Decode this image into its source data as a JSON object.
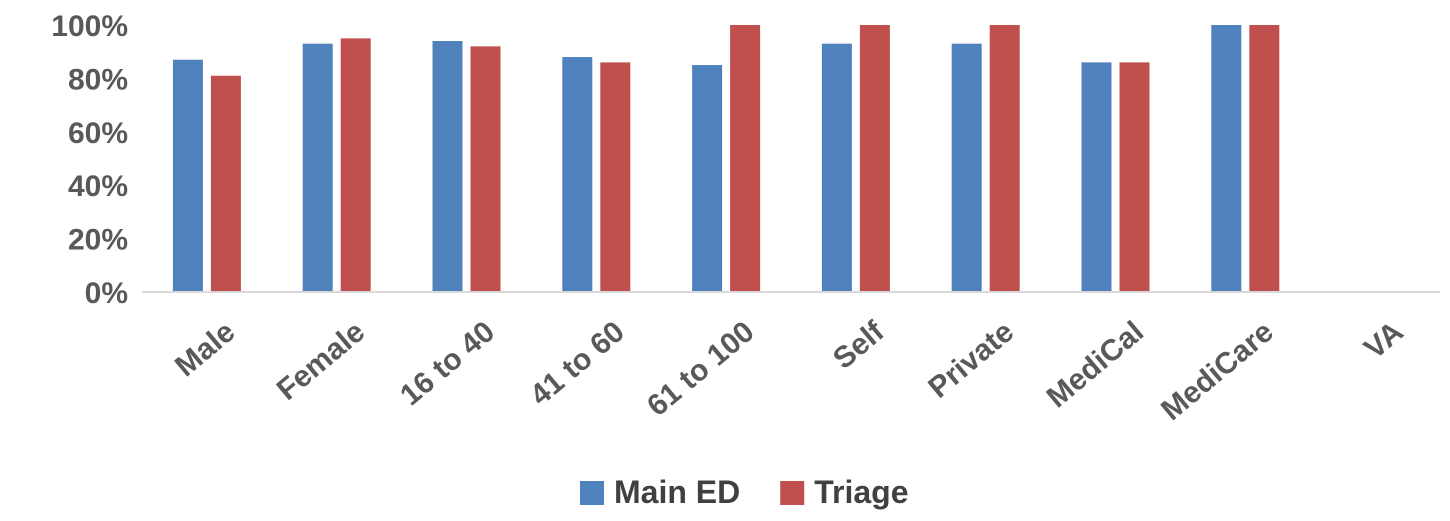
{
  "chart_data": {
    "type": "bar",
    "categories": [
      "Male",
      "Female",
      "16  to 40",
      "41  to 60",
      "61  to 100",
      "Self",
      "Private",
      "MediCal",
      "MediCare",
      "VA"
    ],
    "series": [
      {
        "name": "Main ED",
        "values": [
          87,
          93,
          94,
          88,
          85,
          93,
          93,
          86,
          100,
          null
        ]
      },
      {
        "name": "Triage",
        "values": [
          81,
          95,
          92,
          86,
          100,
          100,
          100,
          86,
          100,
          null
        ]
      }
    ],
    "yticks": [
      "0%",
      "20%",
      "40%",
      "60%",
      "80%",
      "100%"
    ],
    "ylim": [
      0,
      100
    ],
    "grid": false,
    "legend": "bottom-center",
    "colors": {
      "Main ED": "#4F81BD",
      "Triage": "#C0504D",
      "axis": "#D9D9D9",
      "text": "#595959"
    }
  }
}
